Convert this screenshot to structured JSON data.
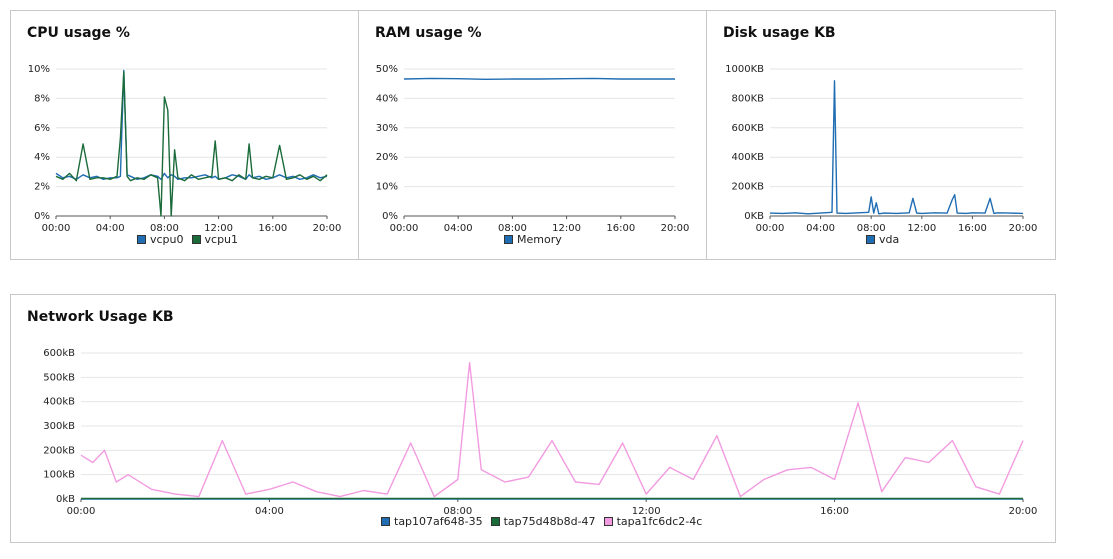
{
  "panels": {
    "cpu": {
      "title": "CPU usage %"
    },
    "ram": {
      "title": "RAM usage %"
    },
    "disk": {
      "title": "Disk usage KB"
    },
    "net": {
      "title": "Network Usage KB"
    }
  },
  "colors": {
    "blue": "#1f6db3",
    "green": "#1b6b3a",
    "pink": "#f29be0",
    "grid": "#e4e4e4",
    "axis": "#555555"
  },
  "chart_data": [
    {
      "id": "cpu",
      "type": "line",
      "title": "CPU usage %",
      "x": [
        0,
        0.5,
        1,
        1.5,
        2,
        2.5,
        3,
        3.5,
        4,
        4.5,
        4.75,
        5,
        5.25,
        5.5,
        6,
        6.5,
        7,
        7.5,
        7.75,
        8,
        8.25,
        8.5,
        8.75,
        9,
        9.5,
        10,
        10.5,
        11,
        11.5,
        11.75,
        12,
        12.5,
        13,
        13.5,
        14,
        14.25,
        14.5,
        15,
        15.5,
        16,
        16.5,
        17,
        17.5,
        18,
        18.5,
        19,
        19.5,
        20
      ],
      "xticks": [
        "00:00",
        "04:00",
        "08:00",
        "12:00",
        "16:00",
        "20:00"
      ],
      "xtick_values": [
        0,
        4,
        8,
        12,
        16,
        20
      ],
      "yticks": [
        "0%",
        "2%",
        "4%",
        "6%",
        "8%",
        "10%"
      ],
      "ylim": [
        0,
        10
      ],
      "series": [
        {
          "name": "vcpu0",
          "color": "#1f6db3",
          "values": [
            2.9,
            2.6,
            2.7,
            2.5,
            2.8,
            2.6,
            2.7,
            2.5,
            2.6,
            2.6,
            2.7,
            9.9,
            2.8,
            2.7,
            2.5,
            2.6,
            2.8,
            2.7,
            2.5,
            2.9,
            2.6,
            2.8,
            2.7,
            2.5,
            2.6,
            2.6,
            2.7,
            2.8,
            2.6,
            2.7,
            2.5,
            2.6,
            2.8,
            2.7,
            2.5,
            2.8,
            2.6,
            2.7,
            2.5,
            2.6,
            2.8,
            2.6,
            2.7,
            2.5,
            2.6,
            2.8,
            2.6,
            2.7
          ]
        },
        {
          "name": "vcpu1",
          "color": "#1b6b3a",
          "values": [
            2.7,
            2.5,
            2.9,
            2.4,
            4.9,
            2.5,
            2.6,
            2.6,
            2.5,
            2.7,
            5.3,
            9.8,
            2.7,
            2.4,
            2.6,
            2.5,
            2.8,
            2.6,
            0.0,
            8.1,
            7.2,
            0.0,
            4.5,
            2.6,
            2.4,
            2.8,
            2.5,
            2.6,
            2.7,
            5.1,
            2.5,
            2.6,
            2.4,
            2.8,
            2.5,
            4.9,
            2.6,
            2.5,
            2.7,
            2.6,
            4.8,
            2.5,
            2.6,
            2.8,
            2.5,
            2.7,
            2.4,
            2.8
          ]
        }
      ]
    },
    {
      "id": "ram",
      "type": "line",
      "title": "RAM usage %",
      "x": [
        0,
        2,
        4,
        6,
        8,
        10,
        12,
        14,
        16,
        18,
        20
      ],
      "xticks": [
        "00:00",
        "04:00",
        "08:00",
        "12:00",
        "16:00",
        "20:00"
      ],
      "xtick_values": [
        0,
        4,
        8,
        12,
        16,
        20
      ],
      "yticks": [
        "0%",
        "10%",
        "20%",
        "30%",
        "40%",
        "50%"
      ],
      "ylim": [
        0,
        50
      ],
      "series": [
        {
          "name": "Memory",
          "color": "#1f6db3",
          "values": [
            46.6,
            46.8,
            46.7,
            46.5,
            46.6,
            46.6,
            46.7,
            46.8,
            46.6,
            46.6,
            46.6
          ]
        }
      ]
    },
    {
      "id": "disk",
      "type": "line",
      "title": "Disk usage KB",
      "x": [
        0,
        1,
        2,
        3,
        4,
        4.9,
        5.1,
        5.3,
        6,
        7,
        7.8,
        8.0,
        8.2,
        8.4,
        8.6,
        9,
        10,
        11,
        11.3,
        11.6,
        12,
        13,
        14,
        14.4,
        14.6,
        14.8,
        15.5,
        16,
        17,
        17.4,
        17.7,
        18,
        19,
        20
      ],
      "xticks": [
        "00:00",
        "04:00",
        "08:00",
        "12:00",
        "16:00",
        "20:00"
      ],
      "xtick_values": [
        0,
        4,
        8,
        12,
        16,
        20
      ],
      "yticks": [
        "0KB",
        "200KB",
        "400KB",
        "600KB",
        "800KB",
        "1000KB"
      ],
      "ylim": [
        0,
        1000
      ],
      "series": [
        {
          "name": "vda",
          "color": "#1f6db3",
          "values": [
            20,
            18,
            22,
            15,
            20,
            25,
            920,
            20,
            18,
            22,
            25,
            130,
            20,
            90,
            15,
            20,
            18,
            22,
            120,
            20,
            18,
            22,
            20,
            110,
            145,
            20,
            18,
            22,
            20,
            120,
            18,
            22,
            20,
            18
          ]
        }
      ]
    },
    {
      "id": "net",
      "type": "line",
      "title": "Network Usage KB",
      "x": [
        0,
        0.25,
        0.5,
        0.75,
        1,
        1.5,
        2,
        2.5,
        3,
        3.5,
        4,
        4.5,
        5,
        5.5,
        6,
        6.5,
        7,
        7.5,
        8,
        8.25,
        8.5,
        9,
        9.5,
        10,
        10.5,
        11,
        11.5,
        12,
        12.5,
        13,
        13.5,
        14,
        14.5,
        15,
        15.5,
        16,
        16.5,
        17,
        17.5,
        18,
        18.5,
        19,
        19.5,
        20
      ],
      "xticks": [
        "00:00",
        "04:00",
        "08:00",
        "12:00",
        "16:00",
        "20:00"
      ],
      "xtick_values": [
        0,
        4,
        8,
        12,
        16,
        20
      ],
      "yticks": [
        "0kB",
        "100kB",
        "200kB",
        "300kB",
        "400kB",
        "500kB",
        "600kB"
      ],
      "ylim": [
        0,
        600
      ],
      "series": [
        {
          "name": "tap107af648-35",
          "color": "#1f6db3",
          "values": [
            0,
            0,
            0,
            0,
            0,
            0,
            0,
            0,
            0,
            0,
            0,
            0,
            0,
            0,
            0,
            0,
            0,
            0,
            0,
            0,
            0,
            0,
            0,
            0,
            0,
            0,
            0,
            0,
            0,
            0,
            0,
            0,
            0,
            0,
            0,
            0,
            0,
            0,
            0,
            0,
            0,
            0,
            0,
            0
          ]
        },
        {
          "name": "tap75d48b8d-47",
          "color": "#1b6b3a",
          "values": [
            2,
            2,
            2,
            2,
            2,
            2,
            2,
            2,
            2,
            2,
            2,
            2,
            2,
            2,
            2,
            2,
            2,
            2,
            2,
            2,
            2,
            2,
            2,
            2,
            2,
            2,
            2,
            2,
            2,
            2,
            2,
            2,
            2,
            2,
            2,
            2,
            2,
            2,
            2,
            2,
            2,
            2,
            2,
            2
          ]
        },
        {
          "name": "tapa1fc6dc2-4c",
          "color": "#f29be0",
          "values": [
            180,
            150,
            200,
            70,
            100,
            40,
            20,
            10,
            240,
            20,
            40,
            70,
            30,
            10,
            35,
            20,
            230,
            10,
            80,
            560,
            120,
            70,
            90,
            240,
            70,
            60,
            230,
            20,
            130,
            80,
            260,
            10,
            80,
            120,
            130,
            80,
            395,
            30,
            170,
            150,
            240,
            50,
            20,
            240
          ]
        }
      ]
    }
  ]
}
